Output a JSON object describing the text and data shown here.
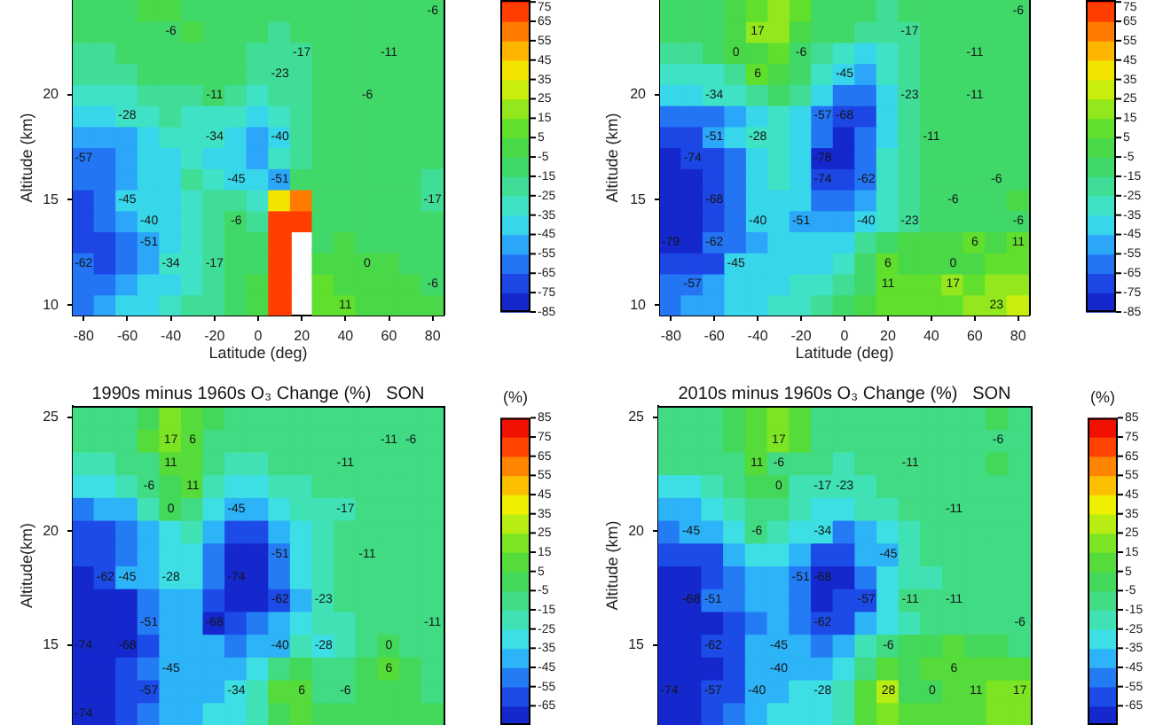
{
  "chart_data": [
    {
      "type": "heatmap",
      "xlabel": "Latitude (deg)",
      "ylabel": "Altitude (km)",
      "categories": [
        "-80",
        null,
        "-60",
        null,
        "-40",
        null,
        "-20",
        null,
        "0",
        null,
        "20",
        null,
        "40",
        null,
        "60",
        null,
        "80"
      ],
      "y_categories": [
        null,
        null,
        null,
        null,
        "20",
        null,
        null,
        null,
        null,
        "15",
        null,
        null,
        null,
        null,
        "10"
      ],
      "cells": [
        [
          -11,
          -8,
          -6,
          -3,
          -3,
          -6,
          -8,
          -11,
          -11,
          -14,
          -14,
          -8,
          -8,
          -8,
          -8,
          -6,
          -6
        ],
        [
          -11,
          -11,
          -8,
          -6,
          -6,
          -5,
          -6,
          -11,
          -14,
          -17,
          -14,
          -8,
          -11,
          -11,
          -11,
          -8,
          -8
        ],
        [
          -17,
          -17,
          -14,
          -11,
          -8,
          -8,
          -8,
          -11,
          -18,
          -20,
          -17,
          -11,
          -11,
          -11,
          -11,
          -11,
          -11
        ],
        [
          -23,
          -23,
          -20,
          -14,
          -11,
          -11,
          -11,
          -14,
          -21,
          -23,
          -17,
          -11,
          -11,
          -11,
          -11,
          -11,
          -11
        ],
        [
          -30,
          -30,
          -28,
          -23,
          -20,
          -17,
          -11,
          -20,
          -29,
          -23,
          -17,
          -11,
          -11,
          -6,
          -8,
          -11,
          -11
        ],
        [
          -40,
          -37,
          -28,
          -28,
          -25,
          -28,
          -34,
          -34,
          -38,
          -30,
          -17,
          -11,
          -11,
          -8,
          -8,
          -11,
          -11
        ],
        [
          -55,
          -55,
          -48,
          -40,
          -35,
          -34,
          -34,
          -45,
          -49,
          -40,
          -17,
          -11,
          -11,
          -11,
          -8,
          -8,
          -11
        ],
        [
          -57,
          -60,
          -50,
          -42,
          -36,
          -34,
          -40,
          -45,
          -52,
          -30,
          -17,
          -11,
          -11,
          -11,
          -11,
          -11,
          -11
        ],
        [
          -65,
          -62,
          -52,
          -45,
          -36,
          -25,
          -34,
          -45,
          -45,
          -51,
          -11,
          -8,
          -11,
          -11,
          -11,
          -14,
          -17
        ],
        [
          -66,
          -60,
          -45,
          -45,
          -37,
          -26,
          -22,
          -20,
          -30,
          40,
          60,
          -8,
          -8,
          -11,
          -11,
          -11,
          -17
        ],
        [
          -68,
          -65,
          -55,
          -40,
          -38,
          -28,
          -20,
          -6,
          -20,
          70,
          70,
          -6,
          -8,
          -8,
          -11,
          -11,
          -11
        ],
        [
          -70,
          -68,
          -58,
          -51,
          -40,
          -30,
          -17,
          -8,
          -8,
          70,
          null,
          -6,
          -3,
          -6,
          -8,
          -8,
          -11
        ],
        [
          -62,
          -66,
          -58,
          -48,
          -34,
          -30,
          -17,
          -11,
          -6,
          70,
          null,
          -3,
          -3,
          0,
          -3,
          -6,
          -6
        ],
        [
          -62,
          -60,
          -52,
          -45,
          -38,
          -30,
          -17,
          -6,
          -2,
          70,
          null,
          5,
          0,
          0,
          -3,
          -3,
          -6
        ],
        [
          -57,
          -55,
          -45,
          -40,
          -34,
          -25,
          -17,
          -6,
          3,
          70,
          null,
          11,
          11,
          0,
          -3,
          -3,
          0
        ]
      ],
      "cell_labels": [
        [
          null,
          null,
          null,
          null,
          null,
          null,
          null,
          null,
          null,
          null,
          null,
          null,
          null,
          null,
          null,
          null,
          "-6"
        ],
        [
          null,
          null,
          null,
          null,
          "-6",
          null,
          null,
          null,
          null,
          null,
          null,
          null,
          null,
          null,
          null,
          null,
          null
        ],
        [
          null,
          null,
          null,
          null,
          null,
          null,
          null,
          null,
          null,
          null,
          "-17",
          null,
          null,
          null,
          "-11",
          null,
          null
        ],
        [
          null,
          null,
          null,
          null,
          null,
          null,
          null,
          null,
          null,
          "-23",
          null,
          null,
          null,
          null,
          null,
          null,
          null
        ],
        [
          null,
          null,
          null,
          null,
          null,
          null,
          "-11",
          null,
          null,
          null,
          null,
          null,
          null,
          "-6",
          null,
          null,
          null
        ],
        [
          null,
          null,
          "-28",
          null,
          null,
          null,
          null,
          null,
          null,
          null,
          null,
          null,
          null,
          null,
          null,
          null,
          null
        ],
        [
          null,
          null,
          null,
          null,
          null,
          null,
          "-34",
          null,
          null,
          "-40",
          null,
          null,
          null,
          null,
          null,
          null,
          null
        ],
        [
          "-57",
          null,
          null,
          null,
          null,
          null,
          null,
          null,
          null,
          null,
          null,
          null,
          null,
          null,
          null,
          null,
          null
        ],
        [
          null,
          null,
          null,
          null,
          null,
          null,
          null,
          "-45",
          null,
          "-51",
          null,
          null,
          null,
          null,
          null,
          null,
          null
        ],
        [
          null,
          null,
          "-45",
          null,
          null,
          null,
          null,
          null,
          null,
          null,
          null,
          null,
          null,
          null,
          null,
          null,
          "-17"
        ],
        [
          null,
          null,
          null,
          "-40",
          null,
          null,
          null,
          "-6",
          null,
          null,
          null,
          null,
          null,
          null,
          null,
          null,
          null
        ],
        [
          null,
          null,
          null,
          "-51",
          null,
          null,
          null,
          null,
          null,
          null,
          null,
          null,
          null,
          null,
          null,
          null,
          null
        ],
        [
          "-62",
          null,
          null,
          null,
          "-34",
          null,
          "-17",
          null,
          null,
          null,
          null,
          null,
          null,
          "0",
          null,
          null,
          null
        ],
        [
          null,
          null,
          null,
          null,
          null,
          null,
          null,
          null,
          null,
          null,
          null,
          null,
          null,
          null,
          null,
          null,
          "-6"
        ],
        [
          null,
          null,
          null,
          null,
          null,
          null,
          null,
          null,
          null,
          null,
          null,
          null,
          "11",
          null,
          null,
          null,
          null
        ]
      ],
      "clim": [
        -85,
        76
      ],
      "cticks": [
        75,
        65,
        55,
        45,
        35,
        25,
        15,
        5,
        -5,
        -15,
        -25,
        -35,
        -45,
        -55,
        -65,
        -75,
        -85
      ]
    },
    {
      "type": "heatmap",
      "xlabel": "Latitude (deg)",
      "ylabel": "Altitude (km)",
      "categories": [
        "-80",
        null,
        "-60",
        null,
        "-40",
        null,
        "-20",
        null,
        "0",
        null,
        "20",
        null,
        "40",
        null,
        "60",
        null,
        "80"
      ],
      "y_categories": [
        null,
        null,
        null,
        null,
        "20",
        null,
        null,
        null,
        null,
        "15",
        null,
        null,
        null,
        null,
        "10"
      ],
      "cells": [
        [
          -8,
          -6,
          -6,
          0,
          11,
          17,
          6,
          -6,
          -10,
          -14,
          -17,
          -11,
          -11,
          -11,
          -8,
          -6,
          -6
        ],
        [
          -11,
          -11,
          -8,
          -3,
          17,
          17,
          3,
          -8,
          -14,
          -23,
          -17,
          -17,
          -11,
          -11,
          -8,
          -6,
          -8
        ],
        [
          -17,
          -17,
          -14,
          0,
          0,
          6,
          -6,
          -17,
          -34,
          -40,
          -28,
          -17,
          -11,
          -11,
          -11,
          -8,
          -8
        ],
        [
          -30,
          -30,
          -28,
          -20,
          6,
          0,
          -11,
          -28,
          -45,
          -50,
          -34,
          -20,
          -11,
          -11,
          -11,
          -8,
          -8
        ],
        [
          -45,
          -45,
          -34,
          -34,
          -25,
          -14,
          -25,
          -40,
          -58,
          -62,
          -45,
          -23,
          -11,
          -11,
          -11,
          -8,
          -8
        ],
        [
          -62,
          -62,
          -57,
          -51,
          -40,
          -30,
          -40,
          -57,
          -68,
          -66,
          -45,
          -23,
          -11,
          -11,
          -11,
          -8,
          -8
        ],
        [
          -72,
          -74,
          -51,
          -45,
          -28,
          -30,
          -45,
          -65,
          -77,
          -62,
          -40,
          -20,
          -11,
          -11,
          -8,
          -8,
          -8
        ],
        [
          -76,
          -74,
          -70,
          -57,
          -40,
          -30,
          -45,
          -78,
          -78,
          -60,
          -34,
          -17,
          -11,
          -8,
          -8,
          -6,
          -6
        ],
        [
          -77,
          -77,
          -71,
          -60,
          -42,
          -33,
          -45,
          -74,
          -75,
          -62,
          -34,
          -20,
          -12,
          -8,
          -7,
          -6,
          -6
        ],
        [
          -78,
          -78,
          -68,
          -62,
          -45,
          -38,
          -45,
          -58,
          -63,
          -48,
          -31,
          -23,
          -12,
          -6,
          -6,
          -6,
          -5
        ],
        [
          -78,
          -78,
          -72,
          -62,
          -40,
          -40,
          -51,
          -55,
          -54,
          -40,
          -28,
          -23,
          -11,
          -6,
          -6,
          -6,
          -6
        ],
        [
          -79,
          -79,
          -62,
          -62,
          -48,
          -42,
          -40,
          -45,
          -40,
          -23,
          -8,
          -3,
          -3,
          3,
          6,
          3,
          11
        ],
        [
          -74,
          -74,
          -66,
          -45,
          -45,
          -40,
          -40,
          -40,
          -28,
          -11,
          6,
          0,
          0,
          0,
          3,
          6,
          11
        ],
        [
          -62,
          -57,
          -52,
          -45,
          -40,
          -37,
          -34,
          -34,
          -22,
          -6,
          11,
          11,
          6,
          17,
          11,
          17,
          23
        ],
        [
          -57,
          -55,
          -48,
          -42,
          -36,
          -32,
          -28,
          -23,
          -14,
          -3,
          6,
          11,
          11,
          11,
          17,
          23,
          28
        ]
      ],
      "cell_labels": [
        [
          null,
          null,
          null,
          null,
          null,
          null,
          null,
          null,
          null,
          null,
          null,
          null,
          null,
          null,
          null,
          null,
          "-6"
        ],
        [
          null,
          null,
          null,
          null,
          "17",
          null,
          null,
          null,
          null,
          null,
          null,
          "-17",
          null,
          null,
          null,
          null,
          null
        ],
        [
          null,
          null,
          null,
          "0",
          null,
          null,
          "-6",
          null,
          null,
          null,
          null,
          null,
          null,
          null,
          "-11",
          null,
          null
        ],
        [
          null,
          null,
          null,
          null,
          "6",
          null,
          null,
          null,
          "-45",
          null,
          null,
          null,
          null,
          null,
          null,
          null,
          null
        ],
        [
          null,
          null,
          "-34",
          null,
          null,
          null,
          null,
          null,
          null,
          null,
          null,
          "-23",
          null,
          null,
          "-11",
          null,
          null
        ],
        [
          null,
          null,
          null,
          null,
          null,
          null,
          null,
          "-57",
          "-68",
          null,
          null,
          null,
          null,
          null,
          null,
          null,
          null
        ],
        [
          null,
          null,
          "-51",
          null,
          "-28",
          null,
          null,
          null,
          null,
          null,
          null,
          null,
          "-11",
          null,
          null,
          null,
          null
        ],
        [
          null,
          "-74",
          null,
          null,
          null,
          null,
          null,
          "-78",
          null,
          null,
          null,
          null,
          null,
          null,
          null,
          null,
          null
        ],
        [
          null,
          null,
          null,
          null,
          null,
          null,
          null,
          "-74",
          null,
          "-62",
          null,
          null,
          null,
          null,
          null,
          "-6",
          null
        ],
        [
          null,
          null,
          "-68",
          null,
          null,
          null,
          null,
          null,
          null,
          null,
          null,
          null,
          null,
          "-6",
          null,
          null,
          null
        ],
        [
          null,
          null,
          null,
          null,
          "-40",
          null,
          "-51",
          null,
          null,
          "-40",
          null,
          "-23",
          null,
          null,
          null,
          null,
          "-6"
        ],
        [
          "-79",
          null,
          "-62",
          null,
          null,
          null,
          null,
          null,
          null,
          null,
          null,
          null,
          null,
          null,
          "6",
          null,
          "11"
        ],
        [
          null,
          null,
          null,
          "-45",
          null,
          null,
          null,
          null,
          null,
          null,
          "6",
          null,
          null,
          "0",
          null,
          null,
          null
        ],
        [
          null,
          "-57",
          null,
          null,
          null,
          null,
          null,
          null,
          null,
          null,
          "11",
          null,
          null,
          "17",
          null,
          null,
          null
        ],
        [
          null,
          null,
          null,
          null,
          null,
          null,
          null,
          null,
          null,
          null,
          null,
          null,
          null,
          null,
          null,
          "23",
          null
        ]
      ],
      "clim": [
        -85,
        76
      ],
      "cticks": [
        75,
        65,
        55,
        45,
        35,
        25,
        15,
        5,
        -5,
        -15,
        -25,
        -35,
        -45,
        -55,
        -65,
        -75,
        -85
      ]
    },
    {
      "type": "heatmap",
      "title": "1990s minus 1960s O₃ Change (%)   SON",
      "ylabel": "Altitude(km)",
      "clabel": "(%)",
      "categories": [
        null,
        null,
        null,
        null,
        null,
        null,
        null,
        null,
        null,
        null,
        null,
        null,
        null,
        null,
        null,
        null,
        null
      ],
      "y_categories": [
        "25",
        null,
        null,
        null,
        null,
        "20",
        null,
        null,
        null,
        null,
        "15",
        null,
        null,
        null
      ],
      "tick_labels": "y",
      "cells": [
        [
          -11,
          -8,
          -6,
          3,
          17,
          11,
          -3,
          -6,
          -8,
          -11,
          -11,
          -11,
          -11,
          -11,
          -11,
          -6,
          -8
        ],
        [
          -11,
          -8,
          -6,
          5,
          17,
          6,
          -6,
          -8,
          -11,
          -11,
          -11,
          -11,
          -11,
          -11,
          -11,
          -6,
          -8
        ],
        [
          -17,
          -17,
          -14,
          -6,
          11,
          6,
          -11,
          -20,
          -18,
          -14,
          -11,
          -11,
          -11,
          -11,
          -11,
          -8,
          -8
        ],
        [
          -30,
          -28,
          -23,
          -6,
          0,
          11,
          -17,
          -30,
          -32,
          -23,
          -17,
          -11,
          -11,
          -11,
          -11,
          -11,
          -8
        ],
        [
          -48,
          -45,
          -40,
          -23,
          0,
          -8,
          -30,
          -45,
          -42,
          -34,
          -23,
          -17,
          -17,
          -11,
          -11,
          -11,
          -8
        ],
        [
          -60,
          -58,
          -50,
          -40,
          -30,
          -25,
          -45,
          -60,
          -60,
          -45,
          -30,
          -20,
          -11,
          -11,
          -11,
          -11,
          -8
        ],
        [
          -65,
          -62,
          -55,
          -45,
          -32,
          -30,
          -51,
          -70,
          -70,
          -51,
          -28,
          -20,
          -11,
          -11,
          -11,
          -8,
          -8
        ],
        [
          -70,
          -62,
          -45,
          -45,
          -28,
          -34,
          -55,
          -74,
          -72,
          -55,
          -34,
          -23,
          -14,
          -11,
          -11,
          -8,
          -8
        ],
        [
          -74,
          -74,
          -66,
          -51,
          -40,
          -40,
          -57,
          -72,
          -67,
          -62,
          -40,
          -23,
          -14,
          -11,
          -11,
          -11,
          -8
        ],
        [
          -74,
          -74,
          -68,
          -51,
          -45,
          -40,
          -68,
          -65,
          -54,
          -40,
          -28,
          -23,
          -17,
          -11,
          -8,
          -11,
          -11
        ],
        [
          -74,
          -74,
          -68,
          -57,
          -45,
          -40,
          -45,
          -48,
          -42,
          -40,
          -20,
          -28,
          -17,
          -6,
          0,
          -6,
          -11
        ],
        [
          -74,
          -72,
          -62,
          -51,
          -45,
          -40,
          -40,
          -40,
          -28,
          -11,
          -3,
          -11,
          -11,
          0,
          6,
          0,
          -6
        ],
        [
          -74,
          -70,
          -62,
          -57,
          -45,
          -40,
          -37,
          -34,
          -24,
          6,
          6,
          -6,
          -6,
          0,
          0,
          -3,
          -6
        ],
        [
          -74,
          -72,
          -62,
          -51,
          -45,
          -40,
          -34,
          -34,
          -22,
          3,
          6,
          0,
          -3,
          0,
          3,
          0,
          -3
        ]
      ],
      "cell_labels": [
        [
          null,
          null,
          null,
          null,
          null,
          null,
          null,
          null,
          null,
          null,
          null,
          null,
          null,
          null,
          null,
          null,
          null
        ],
        [
          null,
          null,
          null,
          null,
          "17",
          "6",
          null,
          null,
          null,
          null,
          null,
          null,
          null,
          null,
          "-11",
          "-6",
          null
        ],
        [
          null,
          null,
          null,
          null,
          "11",
          null,
          null,
          null,
          null,
          null,
          null,
          null,
          "-11",
          null,
          null,
          null,
          null
        ],
        [
          null,
          null,
          null,
          "-6",
          null,
          "11",
          null,
          null,
          null,
          null,
          null,
          null,
          null,
          null,
          null,
          null,
          null
        ],
        [
          null,
          null,
          null,
          null,
          "0",
          null,
          null,
          "-45",
          null,
          null,
          null,
          null,
          "-17",
          null,
          null,
          null,
          null
        ],
        [
          null,
          null,
          null,
          null,
          null,
          null,
          null,
          null,
          null,
          null,
          null,
          null,
          null,
          null,
          null,
          null,
          null
        ],
        [
          null,
          null,
          null,
          null,
          null,
          null,
          null,
          null,
          null,
          "-51",
          null,
          null,
          null,
          "-11",
          null,
          null,
          null
        ],
        [
          null,
          "-62",
          "-45",
          null,
          "-28",
          null,
          null,
          "-74",
          null,
          null,
          null,
          null,
          null,
          null,
          null,
          null,
          null
        ],
        [
          null,
          null,
          null,
          null,
          null,
          null,
          null,
          null,
          null,
          "-62",
          null,
          "-23",
          null,
          null,
          null,
          null,
          null
        ],
        [
          null,
          null,
          null,
          "-51",
          null,
          null,
          "-68",
          null,
          null,
          null,
          null,
          null,
          null,
          null,
          null,
          null,
          "-11"
        ],
        [
          "-74",
          null,
          "-68",
          null,
          null,
          null,
          null,
          null,
          null,
          "-40",
          null,
          "-28",
          null,
          null,
          "0",
          null,
          null
        ],
        [
          null,
          null,
          null,
          null,
          "-45",
          null,
          null,
          null,
          null,
          null,
          null,
          null,
          null,
          null,
          "6",
          null,
          null
        ],
        [
          null,
          null,
          null,
          "-57",
          null,
          null,
          null,
          "-34",
          null,
          null,
          "6",
          null,
          "-6",
          null,
          null,
          null,
          null
        ],
        [
          "-74",
          null,
          null,
          null,
          null,
          null,
          null,
          null,
          null,
          null,
          null,
          null,
          null,
          null,
          null,
          null,
          null
        ]
      ],
      "clim": [
        -75,
        85
      ],
      "cticks": [
        85,
        75,
        65,
        55,
        45,
        35,
        25,
        15,
        5,
        -5,
        -15,
        -25,
        -35,
        -45,
        -55,
        -65
      ]
    },
    {
      "type": "heatmap",
      "title": "2010s minus 1960s O₃ Change (%)   SON",
      "ylabel": "Altitude (km)",
      "clabel": "(%)",
      "categories": [
        null,
        null,
        null,
        null,
        null,
        null,
        null,
        null,
        null,
        null,
        null,
        null,
        null,
        null,
        null,
        null,
        null
      ],
      "y_categories": [
        "25",
        null,
        null,
        null,
        null,
        "20",
        null,
        null,
        null,
        null,
        "15",
        null,
        null,
        null
      ],
      "tick_labels": "y",
      "cells": [
        [
          -8,
          -8,
          -6,
          0,
          11,
          17,
          6,
          -6,
          -8,
          -8,
          -11,
          -11,
          -11,
          -11,
          -8,
          -3,
          -8
        ],
        [
          -11,
          -8,
          -8,
          -3,
          8,
          17,
          6,
          -6,
          -11,
          -11,
          -11,
          -11,
          -11,
          -11,
          -11,
          -6,
          -8
        ],
        [
          -14,
          -11,
          -11,
          -6,
          11,
          -6,
          -8,
          -14,
          -17,
          -14,
          -11,
          -11,
          -11,
          -11,
          -11,
          -3,
          -8
        ],
        [
          -28,
          -28,
          -23,
          -11,
          -3,
          0,
          -17,
          -17,
          -23,
          -17,
          -14,
          -11,
          -11,
          -11,
          -11,
          -6,
          -8
        ],
        [
          -40,
          -40,
          -34,
          -23,
          -8,
          -11,
          -25,
          -34,
          -32,
          -23,
          -17,
          -14,
          -11,
          -11,
          -11,
          -8,
          -8
        ],
        [
          -50,
          -45,
          -45,
          -34,
          -6,
          -23,
          -34,
          -34,
          -48,
          -40,
          -28,
          -17,
          -11,
          -11,
          -11,
          -8,
          -8
        ],
        [
          -62,
          -62,
          -57,
          -45,
          -34,
          -34,
          -45,
          -62,
          -62,
          -45,
          -45,
          -23,
          -14,
          -11,
          -11,
          -8,
          -8
        ],
        [
          -68,
          -68,
          -62,
          -51,
          -40,
          -40,
          -51,
          -68,
          -67,
          -51,
          -34,
          -23,
          -17,
          -11,
          -11,
          -8,
          -8
        ],
        [
          -70,
          -68,
          -51,
          -51,
          -45,
          -40,
          -51,
          -68,
          -64,
          -57,
          -28,
          -11,
          -11,
          -11,
          -11,
          -8,
          -6
        ],
        [
          -74,
          -70,
          -66,
          -57,
          -51,
          -45,
          -51,
          -62,
          -56,
          -40,
          -28,
          -17,
          -11,
          -11,
          -8,
          -6,
          -6
        ],
        [
          -74,
          -72,
          -62,
          -57,
          -45,
          -45,
          -45,
          -48,
          -40,
          -17,
          -6,
          -3,
          0,
          6,
          0,
          -3,
          -6
        ],
        [
          -74,
          -74,
          -66,
          -57,
          -45,
          -40,
          -40,
          -40,
          -28,
          -6,
          6,
          0,
          6,
          6,
          6,
          6,
          11
        ],
        [
          -74,
          -72,
          -57,
          -57,
          -40,
          -37,
          -34,
          -28,
          -22,
          11,
          28,
          0,
          0,
          11,
          11,
          17,
          17
        ],
        [
          -74,
          -70,
          -62,
          -51,
          -40,
          -34,
          -28,
          -28,
          -20,
          6,
          17,
          6,
          6,
          11,
          11,
          17,
          23
        ]
      ],
      "cell_labels": [
        [
          null,
          null,
          null,
          null,
          null,
          null,
          null,
          null,
          null,
          null,
          null,
          null,
          null,
          null,
          null,
          null,
          null
        ],
        [
          null,
          null,
          null,
          null,
          null,
          "17",
          null,
          null,
          null,
          null,
          null,
          null,
          null,
          null,
          null,
          "-6",
          null
        ],
        [
          null,
          null,
          null,
          null,
          "11",
          "-6",
          null,
          null,
          null,
          null,
          null,
          "-11",
          null,
          null,
          null,
          null,
          null
        ],
        [
          null,
          null,
          null,
          null,
          null,
          "0",
          null,
          "-17",
          "-23",
          null,
          null,
          null,
          null,
          null,
          null,
          null,
          null
        ],
        [
          null,
          null,
          null,
          null,
          null,
          null,
          null,
          null,
          null,
          null,
          null,
          null,
          null,
          "-11",
          null,
          null,
          null
        ],
        [
          null,
          "-45",
          null,
          null,
          "-6",
          null,
          null,
          "-34",
          null,
          null,
          null,
          null,
          null,
          null,
          null,
          null,
          null
        ],
        [
          null,
          null,
          null,
          null,
          null,
          null,
          null,
          null,
          null,
          null,
          "-45",
          null,
          null,
          null,
          null,
          null,
          null
        ],
        [
          null,
          null,
          null,
          null,
          null,
          null,
          "-51",
          "-68",
          null,
          null,
          null,
          null,
          null,
          null,
          null,
          null,
          null
        ],
        [
          null,
          "-68",
          "-51",
          null,
          null,
          null,
          null,
          null,
          null,
          "-57",
          null,
          "-11",
          null,
          "-11",
          null,
          null,
          null
        ],
        [
          null,
          null,
          null,
          null,
          null,
          null,
          null,
          "-62",
          null,
          null,
          null,
          null,
          null,
          null,
          null,
          null,
          "-6"
        ],
        [
          null,
          null,
          "-62",
          null,
          null,
          "-45",
          null,
          null,
          null,
          null,
          "-6",
          null,
          null,
          null,
          null,
          null,
          null
        ],
        [
          null,
          null,
          null,
          null,
          null,
          "-40",
          null,
          null,
          null,
          null,
          null,
          null,
          null,
          "6",
          null,
          null,
          null
        ],
        [
          "-74",
          null,
          "-57",
          null,
          "-40",
          null,
          null,
          "-28",
          null,
          null,
          "28",
          null,
          "0",
          null,
          "11",
          null,
          "17"
        ],
        [
          null,
          null,
          null,
          null,
          null,
          null,
          null,
          null,
          null,
          null,
          null,
          null,
          null,
          null,
          null,
          null,
          null
        ]
      ],
      "clim": [
        -75,
        85
      ],
      "cticks": [
        85,
        75,
        65,
        55,
        45,
        35,
        25,
        15,
        5,
        -5,
        -15,
        -25,
        -35,
        -45,
        -55,
        -65
      ]
    }
  ]
}
